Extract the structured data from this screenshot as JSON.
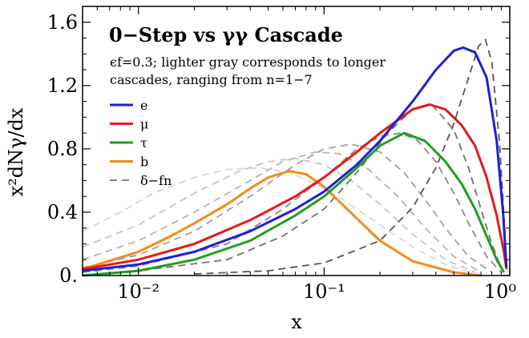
{
  "chart_data": {
    "type": "line",
    "title": "0−Step vs γγ Cascade",
    "annotation": [
      "ϵf=0.3; lighter gray corresponds to longer",
      "cascades, ranging from n=1−7"
    ],
    "xlabel": "x",
    "ylabel": "x²dNγ/dx",
    "xscale": "log",
    "xlim": [
      0.005,
      1.0
    ],
    "ylim": [
      0.0,
      1.7
    ],
    "xticks": [
      {
        "value": 0.01,
        "label": "10⁻²"
      },
      {
        "value": 0.1,
        "label": "10⁻¹"
      },
      {
        "value": 1.0,
        "label": "10⁰"
      }
    ],
    "yticks": [
      {
        "value": 0.0,
        "label": "0."
      },
      {
        "value": 0.4,
        "label": "0.4"
      },
      {
        "value": 0.8,
        "label": "0.8"
      },
      {
        "value": 1.2,
        "label": "1.2"
      },
      {
        "value": 1.6,
        "label": "1.6"
      }
    ],
    "legend_position": "upper-left",
    "series": [
      {
        "name": "e",
        "color": "#1f1fd6",
        "style": "solid",
        "x": [
          0.005,
          0.01,
          0.02,
          0.04,
          0.07,
          0.1,
          0.15,
          0.2,
          0.3,
          0.4,
          0.5,
          0.56,
          0.65,
          0.75,
          0.85,
          0.92,
          0.96
        ],
        "y": [
          0.03,
          0.07,
          0.15,
          0.28,
          0.42,
          0.53,
          0.7,
          0.85,
          1.1,
          1.3,
          1.42,
          1.44,
          1.41,
          1.25,
          0.85,
          0.4,
          0.05
        ]
      },
      {
        "name": "μ",
        "color": "#e31a1a",
        "style": "solid",
        "x": [
          0.005,
          0.01,
          0.02,
          0.04,
          0.07,
          0.1,
          0.15,
          0.2,
          0.3,
          0.37,
          0.45,
          0.55,
          0.65,
          0.75,
          0.85,
          0.93,
          0.96
        ],
        "y": [
          0.04,
          0.1,
          0.2,
          0.35,
          0.5,
          0.62,
          0.78,
          0.9,
          1.05,
          1.08,
          1.05,
          0.95,
          0.82,
          0.62,
          0.38,
          0.15,
          0.04
        ]
      },
      {
        "name": "τ",
        "color": "#1f9e1f",
        "style": "solid",
        "x": [
          0.005,
          0.01,
          0.02,
          0.04,
          0.07,
          0.1,
          0.15,
          0.2,
          0.27,
          0.35,
          0.45,
          0.55,
          0.65,
          0.75,
          0.85,
          0.93
        ],
        "y": [
          0.0,
          0.03,
          0.1,
          0.22,
          0.38,
          0.5,
          0.68,
          0.82,
          0.9,
          0.85,
          0.72,
          0.58,
          0.42,
          0.25,
          0.1,
          0.02
        ]
      },
      {
        "name": "b",
        "color": "#f28c1c",
        "style": "solid",
        "x": [
          0.005,
          0.01,
          0.015,
          0.02,
          0.03,
          0.04,
          0.05,
          0.065,
          0.08,
          0.1,
          0.15,
          0.2,
          0.3,
          0.5,
          0.7
        ],
        "y": [
          0.04,
          0.15,
          0.25,
          0.33,
          0.45,
          0.55,
          0.62,
          0.66,
          0.64,
          0.56,
          0.36,
          0.22,
          0.09,
          0.02,
          0.0
        ]
      },
      {
        "name": "δ−fn",
        "color": "#808080",
        "style": "dashed",
        "x": [],
        "y": []
      }
    ],
    "reference_curves": [
      {
        "n": 1,
        "color": "#555555",
        "x": [
          0.02,
          0.05,
          0.1,
          0.2,
          0.3,
          0.4,
          0.5,
          0.6,
          0.68,
          0.74,
          0.8,
          0.88,
          0.95
        ],
        "y": [
          0.01,
          0.03,
          0.08,
          0.22,
          0.43,
          0.68,
          0.96,
          1.25,
          1.45,
          1.49,
          1.35,
          0.85,
          0.2
        ]
      },
      {
        "n": 2,
        "color": "#707070",
        "x": [
          0.005,
          0.01,
          0.03,
          0.06,
          0.1,
          0.15,
          0.22,
          0.3,
          0.38,
          0.5,
          0.6,
          0.7,
          0.8,
          0.9
        ],
        "y": [
          0.0,
          0.03,
          0.1,
          0.25,
          0.42,
          0.65,
          0.9,
          1.05,
          1.08,
          0.92,
          0.68,
          0.42,
          0.2,
          0.05
        ]
      },
      {
        "n": 3,
        "color": "#888888",
        "x": [
          0.005,
          0.01,
          0.03,
          0.06,
          0.1,
          0.15,
          0.2,
          0.26,
          0.32,
          0.4,
          0.5,
          0.6,
          0.75,
          0.9
        ],
        "y": [
          0.02,
          0.06,
          0.2,
          0.42,
          0.62,
          0.8,
          0.88,
          0.9,
          0.85,
          0.72,
          0.52,
          0.33,
          0.12,
          0.02
        ]
      },
      {
        "n": 4,
        "color": "#a0a0a0",
        "x": [
          0.005,
          0.01,
          0.02,
          0.04,
          0.07,
          0.1,
          0.14,
          0.2,
          0.27,
          0.35,
          0.45,
          0.6,
          0.8
        ],
        "y": [
          0.05,
          0.13,
          0.28,
          0.5,
          0.7,
          0.8,
          0.83,
          0.78,
          0.65,
          0.48,
          0.3,
          0.12,
          0.02
        ]
      },
      {
        "n": 5,
        "color": "#b4b4b4",
        "x": [
          0.005,
          0.01,
          0.02,
          0.04,
          0.06,
          0.09,
          0.12,
          0.17,
          0.25,
          0.35,
          0.5,
          0.7
        ],
        "y": [
          0.1,
          0.22,
          0.4,
          0.6,
          0.72,
          0.78,
          0.77,
          0.68,
          0.5,
          0.3,
          0.12,
          0.02
        ]
      },
      {
        "n": 6,
        "color": "#c6c6c6",
        "x": [
          0.005,
          0.01,
          0.02,
          0.035,
          0.05,
          0.07,
          0.1,
          0.14,
          0.2,
          0.3,
          0.45,
          0.65
        ],
        "y": [
          0.18,
          0.32,
          0.52,
          0.66,
          0.72,
          0.74,
          0.7,
          0.6,
          0.45,
          0.26,
          0.1,
          0.02
        ]
      },
      {
        "n": 7,
        "color": "#d8d8d8",
        "x": [
          0.005,
          0.008,
          0.012,
          0.02,
          0.03,
          0.045,
          0.065,
          0.09,
          0.13,
          0.2,
          0.3,
          0.45,
          0.65
        ],
        "y": [
          0.28,
          0.4,
          0.52,
          0.62,
          0.67,
          0.68,
          0.65,
          0.58,
          0.47,
          0.32,
          0.18,
          0.07,
          0.01
        ]
      }
    ]
  }
}
